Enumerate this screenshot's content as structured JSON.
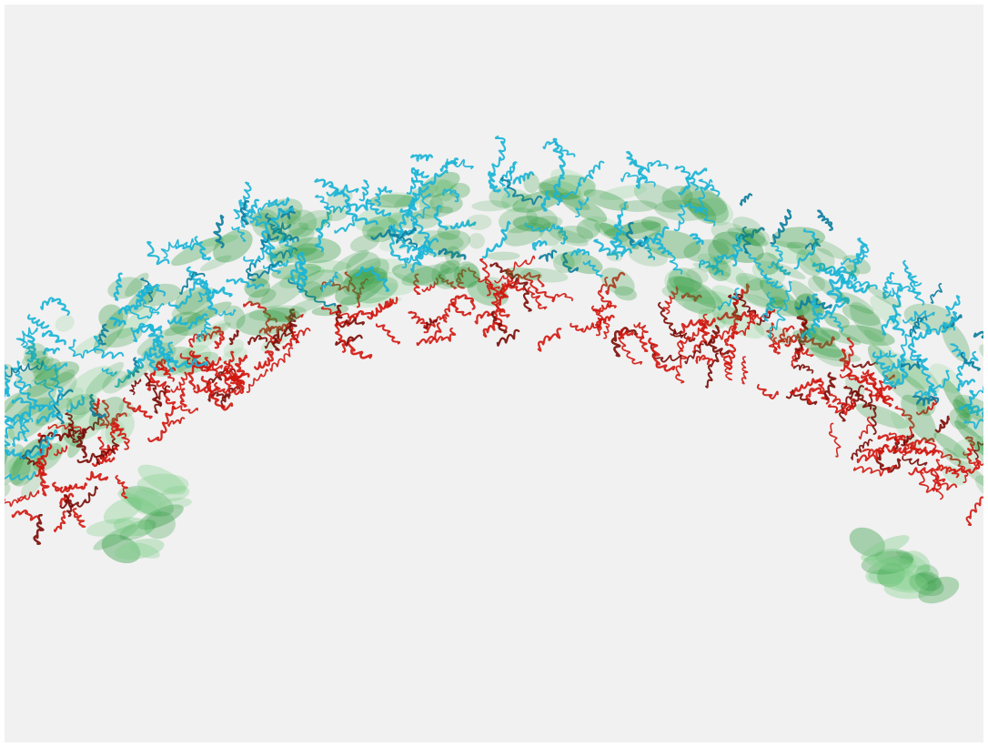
{
  "scene": {
    "subject": "curved-protein-assembly-ribbon-render",
    "colors": {
      "background": "#f1f1f1",
      "frame": "#ffffff",
      "outer_ribbon": "#1bb4d6",
      "outer_ribbon_dark": "#0e7f9e",
      "inner_ribbon": "#d0160e",
      "inner_ribbon_dark": "#7a0b06",
      "density_surface": "#2e9a3e",
      "density_surface_light": "#7fcf8a"
    }
  }
}
